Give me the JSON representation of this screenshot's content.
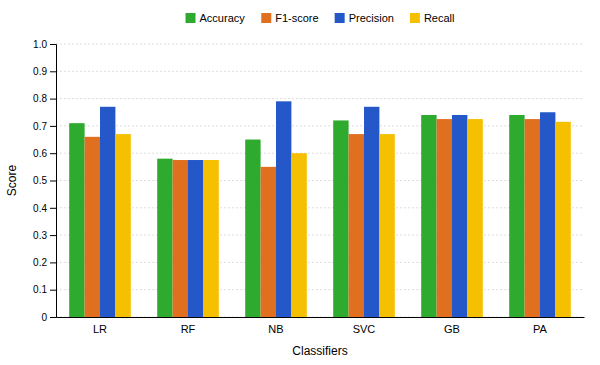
{
  "chart_data": {
    "type": "bar",
    "xlabel": "Classifiers",
    "ylabel": "Score",
    "categories": [
      "LR",
      "RF",
      "NB",
      "SVC",
      "GB",
      "PA"
    ],
    "series": [
      {
        "name": "Accuracy",
        "color": "#2eaa2e",
        "values": [
          0.71,
          0.58,
          0.65,
          0.72,
          0.74,
          0.74
        ]
      },
      {
        "name": "F1-score",
        "color": "#e07020",
        "values": [
          0.66,
          0.575,
          0.55,
          0.67,
          0.725,
          0.725
        ]
      },
      {
        "name": "Precision",
        "color": "#2458c8",
        "values": [
          0.77,
          0.575,
          0.79,
          0.77,
          0.74,
          0.75
        ]
      },
      {
        "name": "Recall",
        "color": "#f5c000",
        "values": [
          0.67,
          0.575,
          0.6,
          0.67,
          0.725,
          0.715
        ]
      }
    ],
    "ylim": [
      0,
      1.0
    ],
    "yticks": [
      0,
      0.1,
      0.2,
      0.3,
      0.4,
      0.5,
      0.6,
      0.7,
      0.8,
      0.9,
      {
        "value": 1,
        "label": "1.0"
      }
    ],
    "grid": true,
    "legend": "top"
  }
}
